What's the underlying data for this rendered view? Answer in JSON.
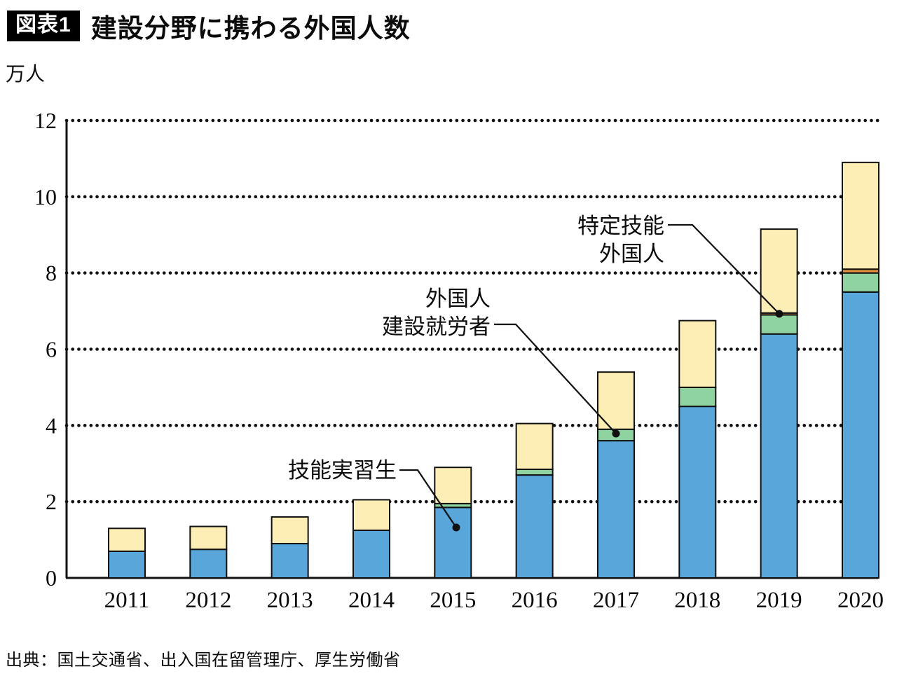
{
  "header": {
    "badge": "図表1",
    "title": "建設分野に携わる外国人数"
  },
  "source": "出典：国土交通省、出入国在留管理庁、厚生労働省",
  "chart_data": {
    "type": "bar",
    "stacked": true,
    "title": "建設分野に携わる外国人数",
    "unit_label": "万人",
    "categories": [
      "2011",
      "2012",
      "2013",
      "2014",
      "2015",
      "2016",
      "2017",
      "2018",
      "2019",
      "2020"
    ],
    "series": [
      {
        "name": "技能実習生",
        "color": "#58a6da",
        "values": [
          0.7,
          0.75,
          0.9,
          1.25,
          1.85,
          2.7,
          3.6,
          4.5,
          6.4,
          7.5
        ]
      },
      {
        "name": "外国人建設就労者",
        "color": "#8fd4a0",
        "values": [
          0,
          0,
          0,
          0,
          0.1,
          0.15,
          0.3,
          0.5,
          0.5,
          0.5
        ]
      },
      {
        "name": "特定技能外国人",
        "color": "#e0913f",
        "values": [
          0,
          0,
          0,
          0,
          0,
          0,
          0,
          0,
          0.05,
          0.1
        ]
      },
      {
        "name": "",
        "color": "#fceeb5",
        "values": [
          0.6,
          0.6,
          0.7,
          0.8,
          0.95,
          1.2,
          1.5,
          1.75,
          2.2,
          2.8
        ]
      }
    ],
    "totals": [
      1.3,
      1.35,
      1.6,
      2.05,
      2.9,
      4.05,
      5.4,
      6.75,
      9.15,
      10.9
    ],
    "ylim": [
      0,
      12
    ],
    "yticks": [
      0,
      2,
      4,
      6,
      8,
      10,
      12
    ],
    "grid": "dotted-horizontal",
    "legend": "none (inline annotations with leader lines)",
    "annotations": [
      {
        "text_lines": [
          "技能実習生"
        ],
        "target_year": "2015"
      },
      {
        "text_lines": [
          "外国人",
          "建設就労者"
        ],
        "target_year": "2017"
      },
      {
        "text_lines": [
          "特定技能",
          "外国人"
        ],
        "target_year": "2019"
      }
    ]
  }
}
